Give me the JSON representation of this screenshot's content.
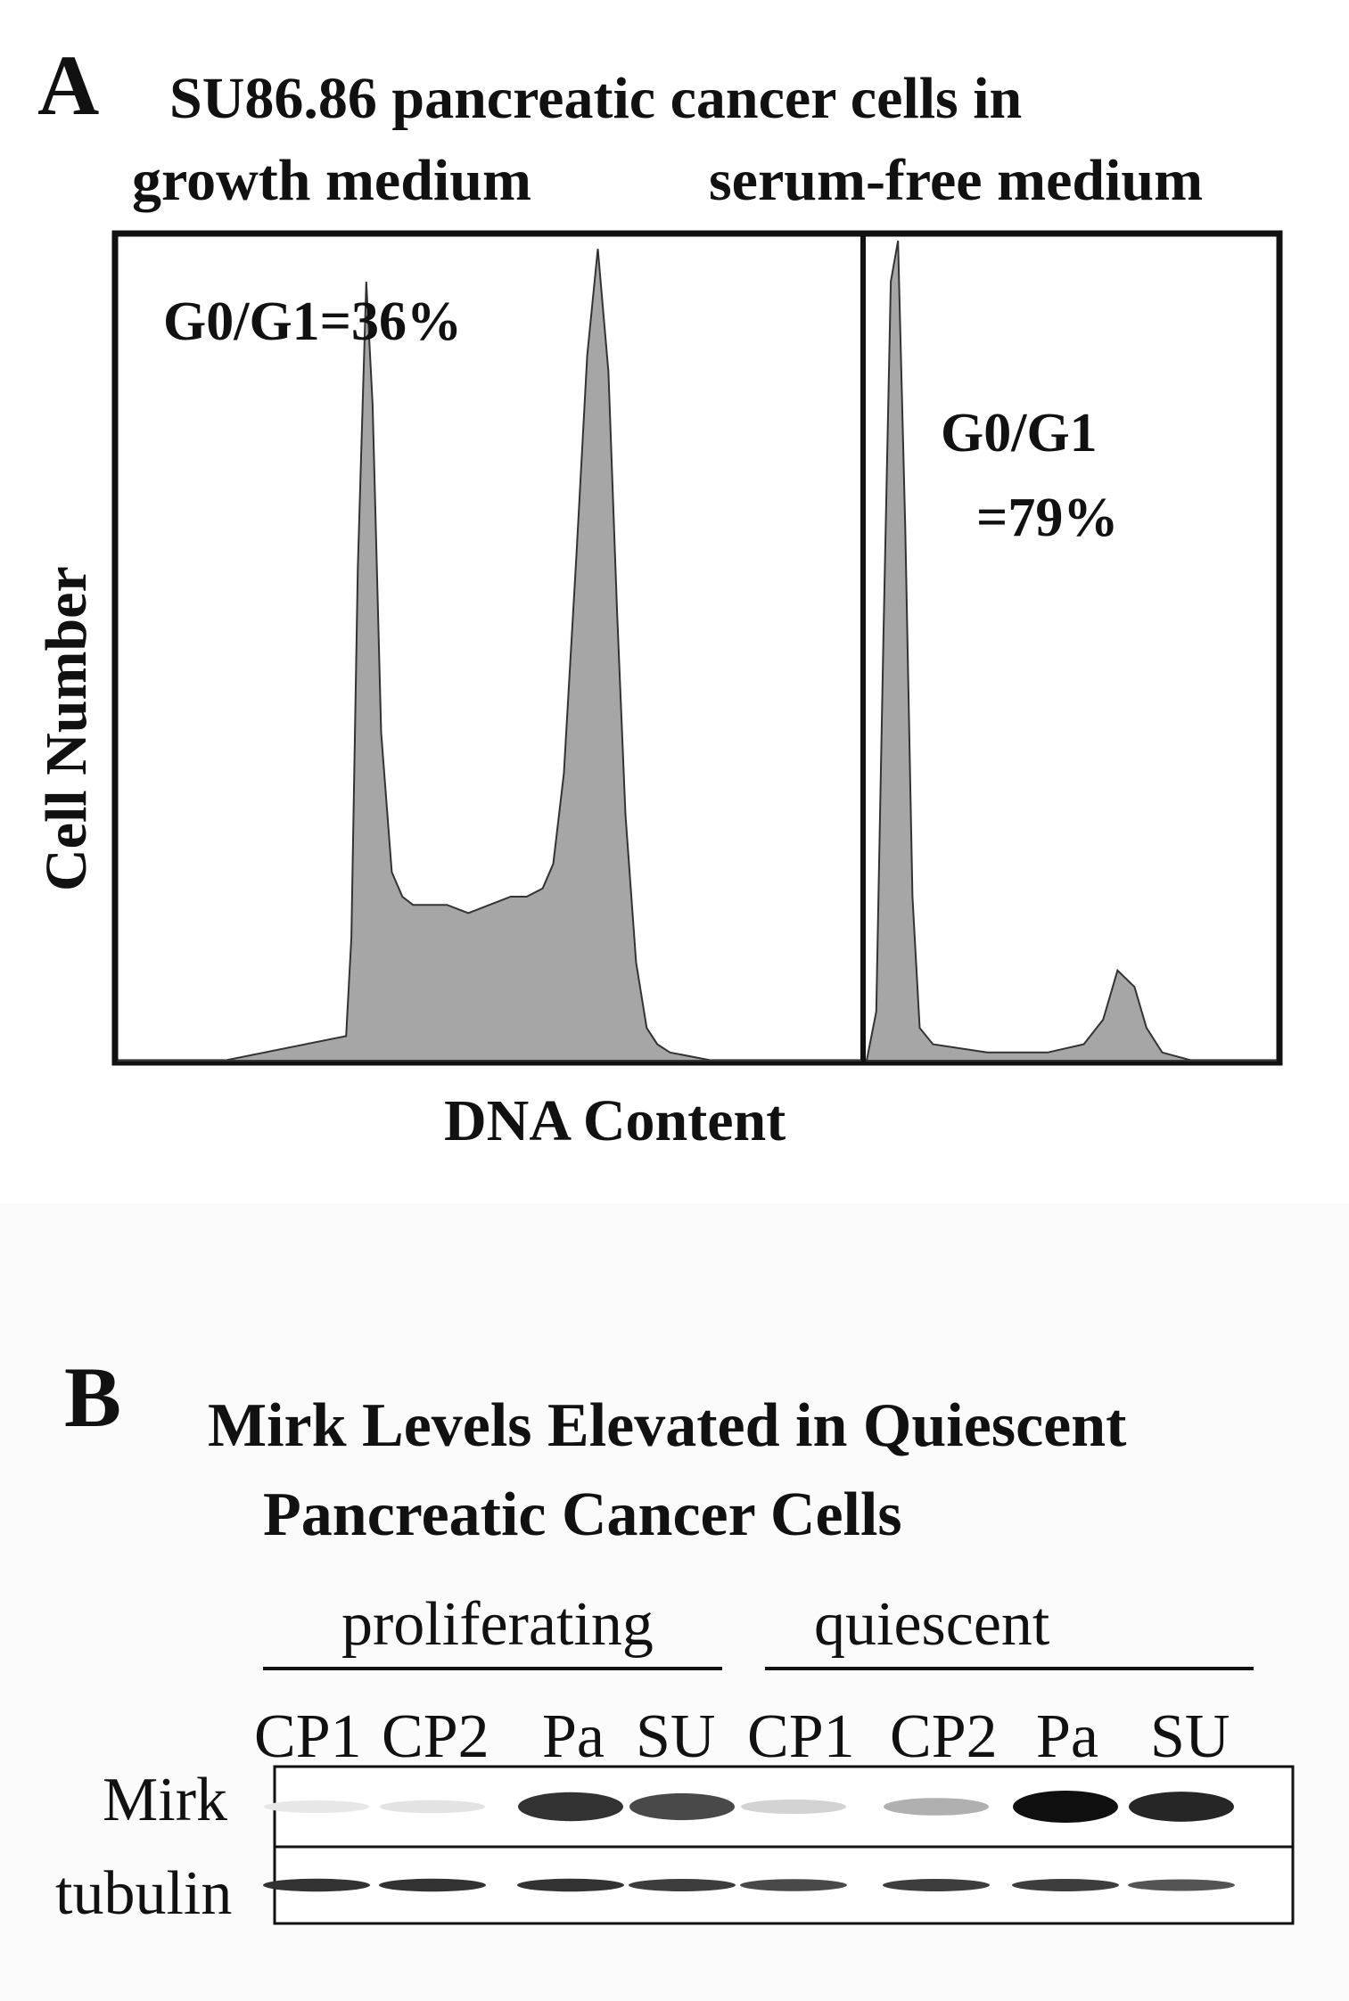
{
  "panel_a": {
    "letter": "A",
    "title_line1": "SU86.86 pancreatic cancer cells in",
    "subtitle_left": "growth medium",
    "subtitle_right": "serum-free medium",
    "y_axis_label": "Cell Number",
    "x_axis_label": "DNA Content",
    "annotation_left": "G0/G1=36%",
    "annotation_right_line1": "G0/G1",
    "annotation_right_line2": "=79%",
    "histogram_color": "#a6a6a6",
    "chart_data": [
      {
        "type": "area",
        "title": "growth medium",
        "xlabel": "DNA Content",
        "ylabel": "Cell Number",
        "x": [
          0,
          100,
          215,
          220,
          226,
          234,
          240,
          248,
          258,
          268,
          278,
          290,
          310,
          330,
          350,
          370,
          385,
          400,
          410,
          420,
          432,
          442,
          452,
          462,
          470,
          478,
          488,
          498,
          508,
          520,
          560,
          640,
          700
        ],
        "y": [
          0,
          0,
          3,
          15,
          60,
          95,
          80,
          40,
          23,
          20,
          19,
          19,
          19,
          18,
          19,
          20,
          20,
          21,
          24,
          35,
          62,
          86,
          99,
          84,
          55,
          30,
          12,
          4,
          2,
          1,
          0,
          0,
          0
        ]
      },
      {
        "type": "area",
        "title": "serum-free medium",
        "xlabel": "DNA Content",
        "ylabel": "Cell Number",
        "x": [
          0,
          8,
          14,
          20,
          26,
          32,
          38,
          44,
          55,
          100,
          150,
          180,
          196,
          208,
          222,
          232,
          245,
          270,
          300,
          340
        ],
        "y": [
          0,
          6,
          52,
          95,
          100,
          65,
          20,
          4,
          2,
          1,
          1,
          2,
          5,
          11,
          9,
          4,
          1,
          0,
          0,
          0
        ]
      }
    ]
  },
  "panel_b": {
    "letter": "B",
    "title_line1": "Mirk Levels Elevated in Quiescent",
    "title_line2": "Pancreatic Cancer Cells",
    "group_left": "proliferating",
    "group_right": "quiescent",
    "lanes": [
      "CP1",
      "CP2",
      "Pa",
      "SU",
      "CP1",
      "CP2",
      "Pa",
      "SU"
    ],
    "row_labels": [
      "Mirk",
      "tubulin"
    ],
    "band_intensity": {
      "Mirk": [
        0.06,
        0.08,
        0.85,
        0.75,
        0.15,
        0.3,
        1.0,
        0.9
      ],
      "tubulin": [
        0.85,
        0.85,
        0.85,
        0.8,
        0.75,
        0.8,
        0.8,
        0.7
      ]
    }
  }
}
